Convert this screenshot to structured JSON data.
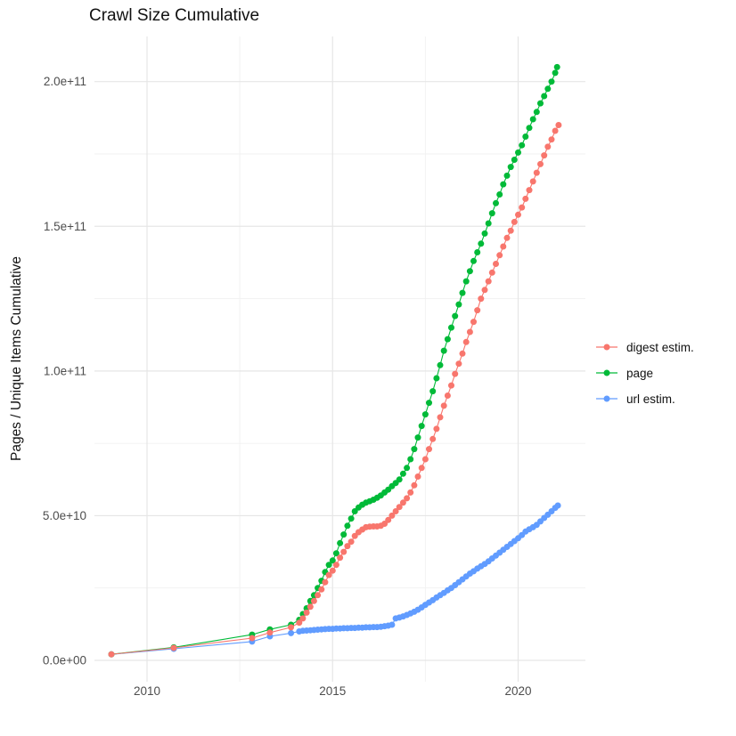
{
  "title": "Crawl Size Cumulative",
  "axes": {
    "y_title": "Pages / Unique Items Cumulative",
    "x_tick_labels": [
      "2010",
      "2015",
      "2020"
    ],
    "y_tick_labels": [
      "0.0e+00",
      "5.0e+10",
      "1.0e+11",
      "1.5e+11",
      "2.0e+11"
    ]
  },
  "legend": {
    "position": "right",
    "items": [
      "digest estim.",
      "page",
      "url estim."
    ]
  },
  "chart_data": {
    "type": "scatter",
    "title": "Crawl Size Cumulative",
    "xlabel": "",
    "ylabel": "Pages / Unique Items Cumulative",
    "value_unit": "billions (1e9) of pages / unique items",
    "x_range_years": [
      2008.6,
      2021.8
    ],
    "y_range_billions": [
      -7,
      216
    ],
    "x_major_ticks": [
      2010,
      2015,
      2020
    ],
    "x_minor_ticks": [
      2012.5,
      2017.5
    ],
    "y_major_ticks_billions": [
      0,
      50,
      100,
      150,
      200
    ],
    "y_minor_ticks_billions": [
      25,
      75,
      125,
      175
    ],
    "grid": true,
    "marker_style": "point-with-line",
    "series": [
      {
        "name": "digest estim.",
        "color": "#F8766D",
        "points": [
          [
            2009.04,
            2.1
          ],
          [
            2010.72,
            4.3
          ],
          [
            2012.83,
            7.7
          ],
          [
            2013.31,
            9.6
          ],
          [
            2013.88,
            11.4
          ],
          [
            2014.1,
            13
          ],
          [
            2014.2,
            14.5
          ],
          [
            2014.3,
            16.5
          ],
          [
            2014.4,
            18.5
          ],
          [
            2014.5,
            20.5
          ],
          [
            2014.6,
            22.5
          ],
          [
            2014.7,
            24.5
          ],
          [
            2014.8,
            27
          ],
          [
            2014.9,
            29.5
          ],
          [
            2015.0,
            31
          ],
          [
            2015.1,
            33
          ],
          [
            2015.2,
            35.5
          ],
          [
            2015.3,
            37.5
          ],
          [
            2015.4,
            39.5
          ],
          [
            2015.5,
            41
          ],
          [
            2015.6,
            43
          ],
          [
            2015.7,
            44.3
          ],
          [
            2015.8,
            45.2
          ],
          [
            2015.9,
            46
          ],
          [
            2016.0,
            46.2
          ],
          [
            2016.1,
            46.3
          ],
          [
            2016.2,
            46.3
          ],
          [
            2016.3,
            46.5
          ],
          [
            2016.4,
            47.2
          ],
          [
            2016.5,
            48.5
          ],
          [
            2016.6,
            50
          ],
          [
            2016.7,
            51.5
          ],
          [
            2016.8,
            53
          ],
          [
            2016.9,
            54.5
          ],
          [
            2017.0,
            56
          ],
          [
            2017.1,
            58
          ],
          [
            2017.2,
            60.5
          ],
          [
            2017.3,
            63.5
          ],
          [
            2017.4,
            66.5
          ],
          [
            2017.5,
            69.5
          ],
          [
            2017.6,
            73
          ],
          [
            2017.7,
            76.5
          ],
          [
            2017.8,
            80
          ],
          [
            2017.9,
            84
          ],
          [
            2018.0,
            88
          ],
          [
            2018.1,
            91.5
          ],
          [
            2018.2,
            95
          ],
          [
            2018.3,
            99
          ],
          [
            2018.4,
            102.5
          ],
          [
            2018.5,
            106
          ],
          [
            2018.6,
            110
          ],
          [
            2018.7,
            113.5
          ],
          [
            2018.8,
            117
          ],
          [
            2018.9,
            121
          ],
          [
            2019.0,
            125
          ],
          [
            2019.1,
            128
          ],
          [
            2019.2,
            131
          ],
          [
            2019.3,
            134
          ],
          [
            2019.4,
            137
          ],
          [
            2019.5,
            140
          ],
          [
            2019.6,
            143
          ],
          [
            2019.7,
            146
          ],
          [
            2019.8,
            148.5
          ],
          [
            2019.9,
            151.5
          ],
          [
            2020.0,
            154
          ],
          [
            2020.1,
            156.5
          ],
          [
            2020.2,
            159.5
          ],
          [
            2020.3,
            162.5
          ],
          [
            2020.4,
            165.5
          ],
          [
            2020.5,
            168.5
          ],
          [
            2020.6,
            171.5
          ],
          [
            2020.7,
            174.5
          ],
          [
            2020.8,
            177.5
          ],
          [
            2020.9,
            180
          ],
          [
            2021.0,
            183
          ],
          [
            2021.09,
            185
          ]
        ]
      },
      {
        "name": "page",
        "color": "#00BA38",
        "points": [
          [
            2009.04,
            2.1
          ],
          [
            2010.72,
            4.5
          ],
          [
            2012.83,
            8.9
          ],
          [
            2013.31,
            10.7
          ],
          [
            2013.88,
            12.3
          ],
          [
            2014.1,
            14
          ],
          [
            2014.2,
            16
          ],
          [
            2014.3,
            18
          ],
          [
            2014.4,
            20.5
          ],
          [
            2014.5,
            22.5
          ],
          [
            2014.6,
            25
          ],
          [
            2014.7,
            27.5
          ],
          [
            2014.8,
            30.5
          ],
          [
            2014.9,
            33
          ],
          [
            2015.0,
            34.5
          ],
          [
            2015.1,
            37
          ],
          [
            2015.2,
            40.5
          ],
          [
            2015.3,
            43.5
          ],
          [
            2015.4,
            46.5
          ],
          [
            2015.5,
            49
          ],
          [
            2015.6,
            51.5
          ],
          [
            2015.7,
            52.8
          ],
          [
            2015.8,
            53.8
          ],
          [
            2015.9,
            54.5
          ],
          [
            2016.0,
            55
          ],
          [
            2016.1,
            55.5
          ],
          [
            2016.2,
            56.2
          ],
          [
            2016.3,
            57
          ],
          [
            2016.4,
            58
          ],
          [
            2016.5,
            59
          ],
          [
            2016.6,
            60.2
          ],
          [
            2016.7,
            61.3
          ],
          [
            2016.8,
            62.5
          ],
          [
            2016.9,
            64.5
          ],
          [
            2017.0,
            66.5
          ],
          [
            2017.1,
            69.5
          ],
          [
            2017.2,
            73
          ],
          [
            2017.3,
            77
          ],
          [
            2017.4,
            81
          ],
          [
            2017.5,
            85
          ],
          [
            2017.6,
            89
          ],
          [
            2017.7,
            93
          ],
          [
            2017.8,
            97.5
          ],
          [
            2017.9,
            102
          ],
          [
            2018.0,
            107
          ],
          [
            2018.1,
            111
          ],
          [
            2018.2,
            115
          ],
          [
            2018.3,
            119
          ],
          [
            2018.4,
            123
          ],
          [
            2018.5,
            127
          ],
          [
            2018.6,
            131
          ],
          [
            2018.7,
            134.5
          ],
          [
            2018.8,
            138
          ],
          [
            2018.9,
            141
          ],
          [
            2019.0,
            144
          ],
          [
            2019.1,
            147.5
          ],
          [
            2019.2,
            151
          ],
          [
            2019.3,
            154.5
          ],
          [
            2019.4,
            158
          ],
          [
            2019.5,
            161
          ],
          [
            2019.6,
            164.5
          ],
          [
            2019.7,
            167.5
          ],
          [
            2019.8,
            170.5
          ],
          [
            2019.9,
            173
          ],
          [
            2020.0,
            175.5
          ],
          [
            2020.1,
            178
          ],
          [
            2020.2,
            181
          ],
          [
            2020.3,
            184
          ],
          [
            2020.4,
            187
          ],
          [
            2020.5,
            189.5
          ],
          [
            2020.6,
            192.5
          ],
          [
            2020.7,
            195
          ],
          [
            2020.8,
            197.5
          ],
          [
            2020.9,
            200
          ],
          [
            2021.0,
            203
          ],
          [
            2021.05,
            205
          ]
        ]
      },
      {
        "name": "url estim.",
        "color": "#619CFF",
        "points": [
          [
            2009.04,
            2.1
          ],
          [
            2010.72,
            4
          ],
          [
            2012.83,
            6.5
          ],
          [
            2013.31,
            8.3
          ],
          [
            2013.88,
            9.4
          ],
          [
            2014.1,
            10
          ],
          [
            2014.2,
            10.2
          ],
          [
            2014.3,
            10.3
          ],
          [
            2014.4,
            10.4
          ],
          [
            2014.5,
            10.5
          ],
          [
            2014.6,
            10.6
          ],
          [
            2014.7,
            10.7
          ],
          [
            2014.8,
            10.8
          ],
          [
            2014.9,
            10.9
          ],
          [
            2015.0,
            10.9
          ],
          [
            2015.1,
            11
          ],
          [
            2015.2,
            11
          ],
          [
            2015.3,
            11.1
          ],
          [
            2015.4,
            11.1
          ],
          [
            2015.5,
            11.2
          ],
          [
            2015.6,
            11.2
          ],
          [
            2015.7,
            11.3
          ],
          [
            2015.8,
            11.3
          ],
          [
            2015.9,
            11.4
          ],
          [
            2016.0,
            11.4
          ],
          [
            2016.1,
            11.5
          ],
          [
            2016.2,
            11.5
          ],
          [
            2016.3,
            11.6
          ],
          [
            2016.4,
            11.8
          ],
          [
            2016.5,
            12
          ],
          [
            2016.6,
            12.3
          ],
          [
            2016.7,
            14.5
          ],
          [
            2016.8,
            14.8
          ],
          [
            2016.9,
            15.2
          ],
          [
            2017.0,
            15.7
          ],
          [
            2017.1,
            16.2
          ],
          [
            2017.2,
            16.8
          ],
          [
            2017.3,
            17.5
          ],
          [
            2017.4,
            18.3
          ],
          [
            2017.5,
            19.2
          ],
          [
            2017.6,
            20
          ],
          [
            2017.7,
            20.8
          ],
          [
            2017.8,
            21.7
          ],
          [
            2017.9,
            22.5
          ],
          [
            2018.0,
            23.3
          ],
          [
            2018.1,
            24.2
          ],
          [
            2018.2,
            25
          ],
          [
            2018.3,
            26
          ],
          [
            2018.4,
            27
          ],
          [
            2018.5,
            28
          ],
          [
            2018.6,
            29
          ],
          [
            2018.7,
            30
          ],
          [
            2018.8,
            30.8
          ],
          [
            2018.9,
            31.7
          ],
          [
            2019.0,
            32.5
          ],
          [
            2019.1,
            33.3
          ],
          [
            2019.2,
            34.2
          ],
          [
            2019.3,
            35.2
          ],
          [
            2019.4,
            36.2
          ],
          [
            2019.5,
            37.2
          ],
          [
            2019.6,
            38.2
          ],
          [
            2019.7,
            39.2
          ],
          [
            2019.8,
            40.2
          ],
          [
            2019.9,
            41.2
          ],
          [
            2020.0,
            42.2
          ],
          [
            2020.1,
            43.3
          ],
          [
            2020.2,
            44.5
          ],
          [
            2020.3,
            45.3
          ],
          [
            2020.4,
            46
          ],
          [
            2020.5,
            46.8
          ],
          [
            2020.6,
            48
          ],
          [
            2020.7,
            49.2
          ],
          [
            2020.8,
            50.3
          ],
          [
            2020.9,
            51.5
          ],
          [
            2021.0,
            52.7
          ],
          [
            2021.07,
            53.5
          ]
        ]
      }
    ]
  },
  "colors": {
    "background": "#ffffff",
    "grid_major": "#e6e6e6",
    "grid_minor": "#f1f1f1",
    "axis_text": "#4d4d4d",
    "title_text": "#111111"
  }
}
